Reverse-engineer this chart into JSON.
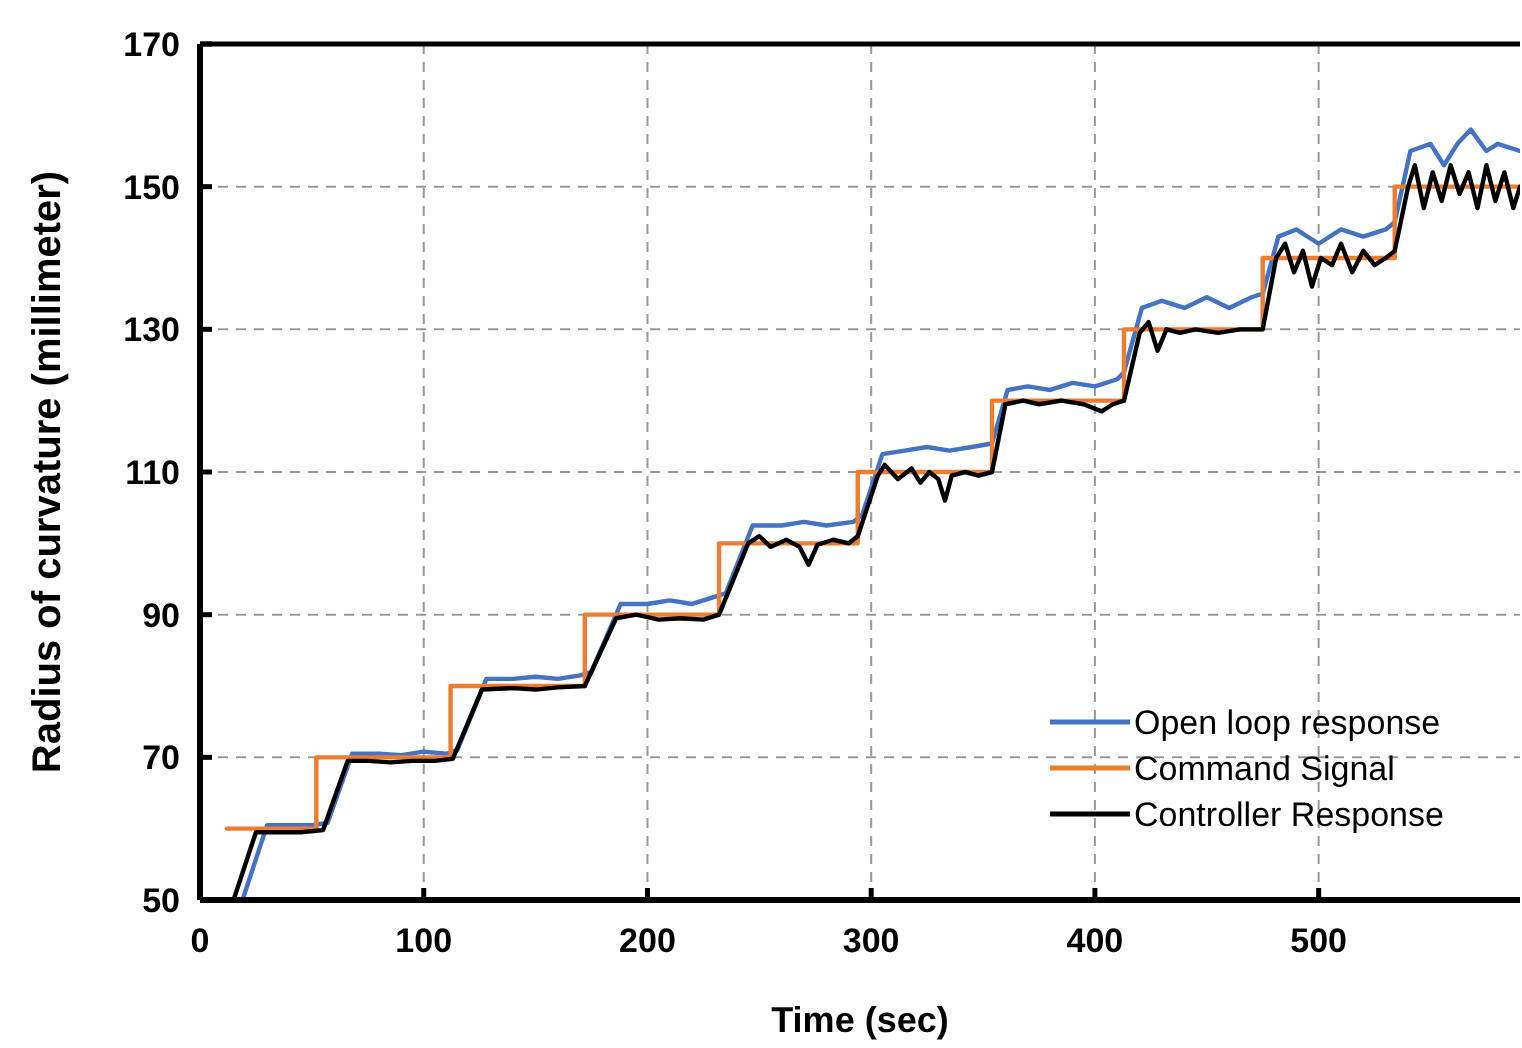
{
  "chart_data": {
    "type": "line",
    "xlabel": "Time (sec)",
    "ylabel": "Radius of curvature (millimeter)",
    "xlim": [
      0,
      590
    ],
    "ylim": [
      50,
      170
    ],
    "xticks": [
      0,
      100,
      200,
      300,
      400,
      500
    ],
    "yticks": [
      50,
      70,
      90,
      110,
      130,
      150,
      170
    ],
    "grid": true,
    "legend": "bottom right",
    "line_style": "solid",
    "series": [
      {
        "name": "Open loop response",
        "color": "#4472c4",
        "x": [
          19,
          30,
          40,
          50,
          57,
          68,
          80,
          90,
          100,
          110,
          115,
          128,
          140,
          150,
          160,
          170,
          175,
          188,
          200,
          210,
          220,
          230,
          235,
          247,
          260,
          270,
          280,
          292,
          296,
          305,
          315,
          325,
          335,
          345,
          354,
          361,
          370,
          380,
          390,
          400,
          410,
          413,
          421,
          430,
          440,
          450,
          460,
          470,
          475,
          482,
          490,
          500,
          510,
          520,
          530,
          534,
          541,
          550,
          556,
          562,
          568,
          575,
          580,
          590
        ],
        "values": [
          50,
          60.5,
          60.5,
          60.5,
          60.8,
          70.5,
          70.5,
          70.3,
          70.8,
          70.5,
          71,
          81,
          81,
          81.3,
          81,
          81.5,
          82,
          91.5,
          91.5,
          92,
          91.5,
          92.5,
          93,
          102.5,
          102.5,
          103,
          102.5,
          103,
          104,
          112.5,
          113,
          113.5,
          113,
          113.5,
          114,
          121.5,
          122,
          121.5,
          122.5,
          122,
          123,
          124,
          133,
          134,
          133,
          134.5,
          133,
          134.5,
          135,
          143,
          144,
          142,
          144,
          143,
          144,
          145,
          155,
          156,
          153,
          156,
          158,
          155,
          156,
          155
        ]
      },
      {
        "name": "Command Signal",
        "color": "#ed7d31",
        "x": [
          12,
          52,
          52,
          112,
          112,
          172,
          172,
          232,
          232,
          294,
          294,
          354,
          354,
          413,
          413,
          475,
          475,
          534,
          534,
          590
        ],
        "values": [
          60,
          60,
          70,
          70,
          80,
          80,
          90,
          90,
          100,
          100,
          110,
          110,
          120,
          120,
          130,
          130,
          140,
          140,
          150,
          150
        ]
      },
      {
        "name": "Controller Response",
        "color": "#000000",
        "x": [
          15,
          25,
          35,
          45,
          55,
          66,
          75,
          85,
          95,
          105,
          113,
          126,
          140,
          150,
          160,
          172,
          186,
          195,
          205,
          215,
          225,
          232,
          245,
          250,
          255,
          262,
          268,
          272,
          276,
          283,
          290,
          294,
          303,
          306,
          312,
          318,
          322,
          326,
          330,
          333,
          336,
          342,
          348,
          354,
          360,
          368,
          375,
          385,
          395,
          403,
          408,
          413,
          420,
          424,
          428,
          432,
          438,
          445,
          455,
          465,
          475,
          481,
          485,
          489,
          493,
          497,
          501,
          506,
          510,
          515,
          520,
          525,
          530,
          534,
          540,
          543,
          547,
          551,
          555,
          559,
          563,
          567,
          571,
          575,
          579,
          583,
          587,
          590
        ],
        "values": [
          50,
          59.5,
          59.5,
          59.5,
          59.8,
          69.5,
          69.5,
          69.3,
          69.5,
          69.5,
          69.8,
          79.5,
          79.7,
          79.5,
          79.8,
          80,
          89.5,
          90,
          89.3,
          89.5,
          89.3,
          90,
          100,
          101,
          99.5,
          100.5,
          99.5,
          97,
          99.8,
          100.5,
          100,
          101,
          109.5,
          111,
          109,
          110.5,
          108.5,
          110,
          109,
          106,
          109.5,
          110,
          109.5,
          110,
          119.5,
          120,
          119.5,
          120,
          119.5,
          118.5,
          119.5,
          120,
          129.5,
          131,
          127,
          130,
          129.5,
          130,
          129.5,
          130,
          130,
          140,
          142,
          138,
          141,
          136,
          140,
          139,
          142,
          138,
          141,
          139,
          140,
          141,
          150,
          153,
          147,
          152,
          148,
          153,
          149,
          152,
          147,
          153,
          148,
          152,
          147,
          150
        ]
      }
    ]
  }
}
